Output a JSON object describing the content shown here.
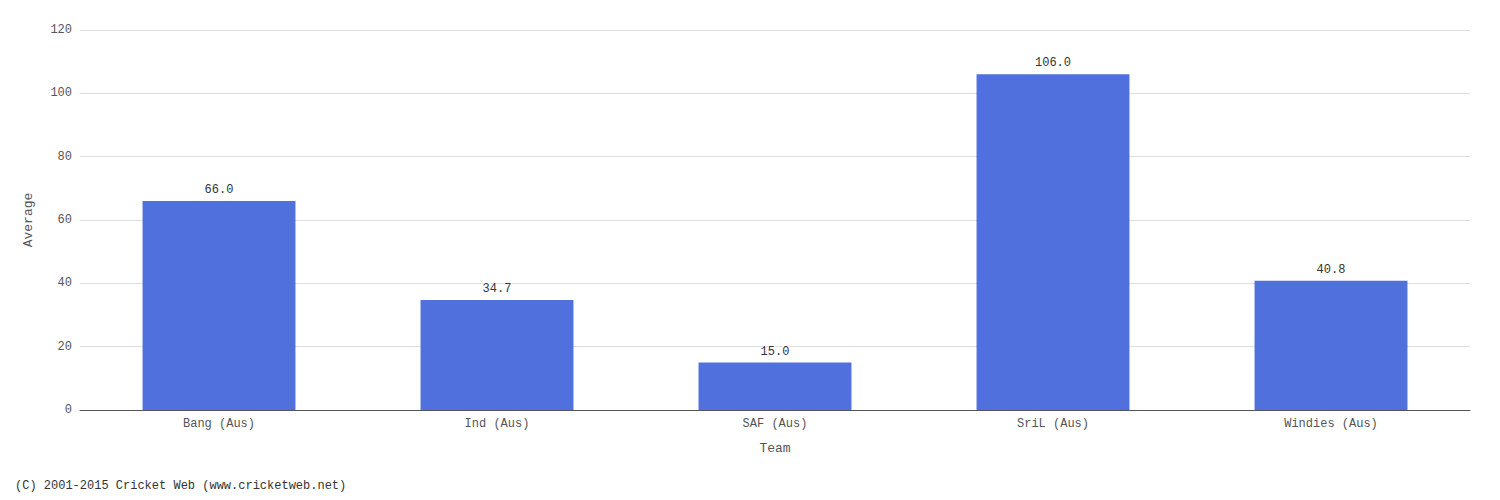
{
  "chart_data": {
    "type": "bar",
    "categories": [
      "Bang (Aus)",
      "Ind (Aus)",
      "SAF (Aus)",
      "SriL (Aus)",
      "Windies (Aus)"
    ],
    "values": [
      66.0,
      34.7,
      15.0,
      106.0,
      40.8
    ],
    "value_labels": [
      "66.0",
      "34.7",
      "15.0",
      "106.0",
      "40.8"
    ],
    "data_labels": true,
    "xlabel": "Team",
    "ylabel": "Average",
    "ylim": [
      0,
      120
    ],
    "yticks": [
      0,
      20,
      40,
      60,
      80,
      100,
      120
    ],
    "grid": true,
    "annotation": "(C) 2001-2015 Cricket Web (www.cricketweb.net)"
  }
}
